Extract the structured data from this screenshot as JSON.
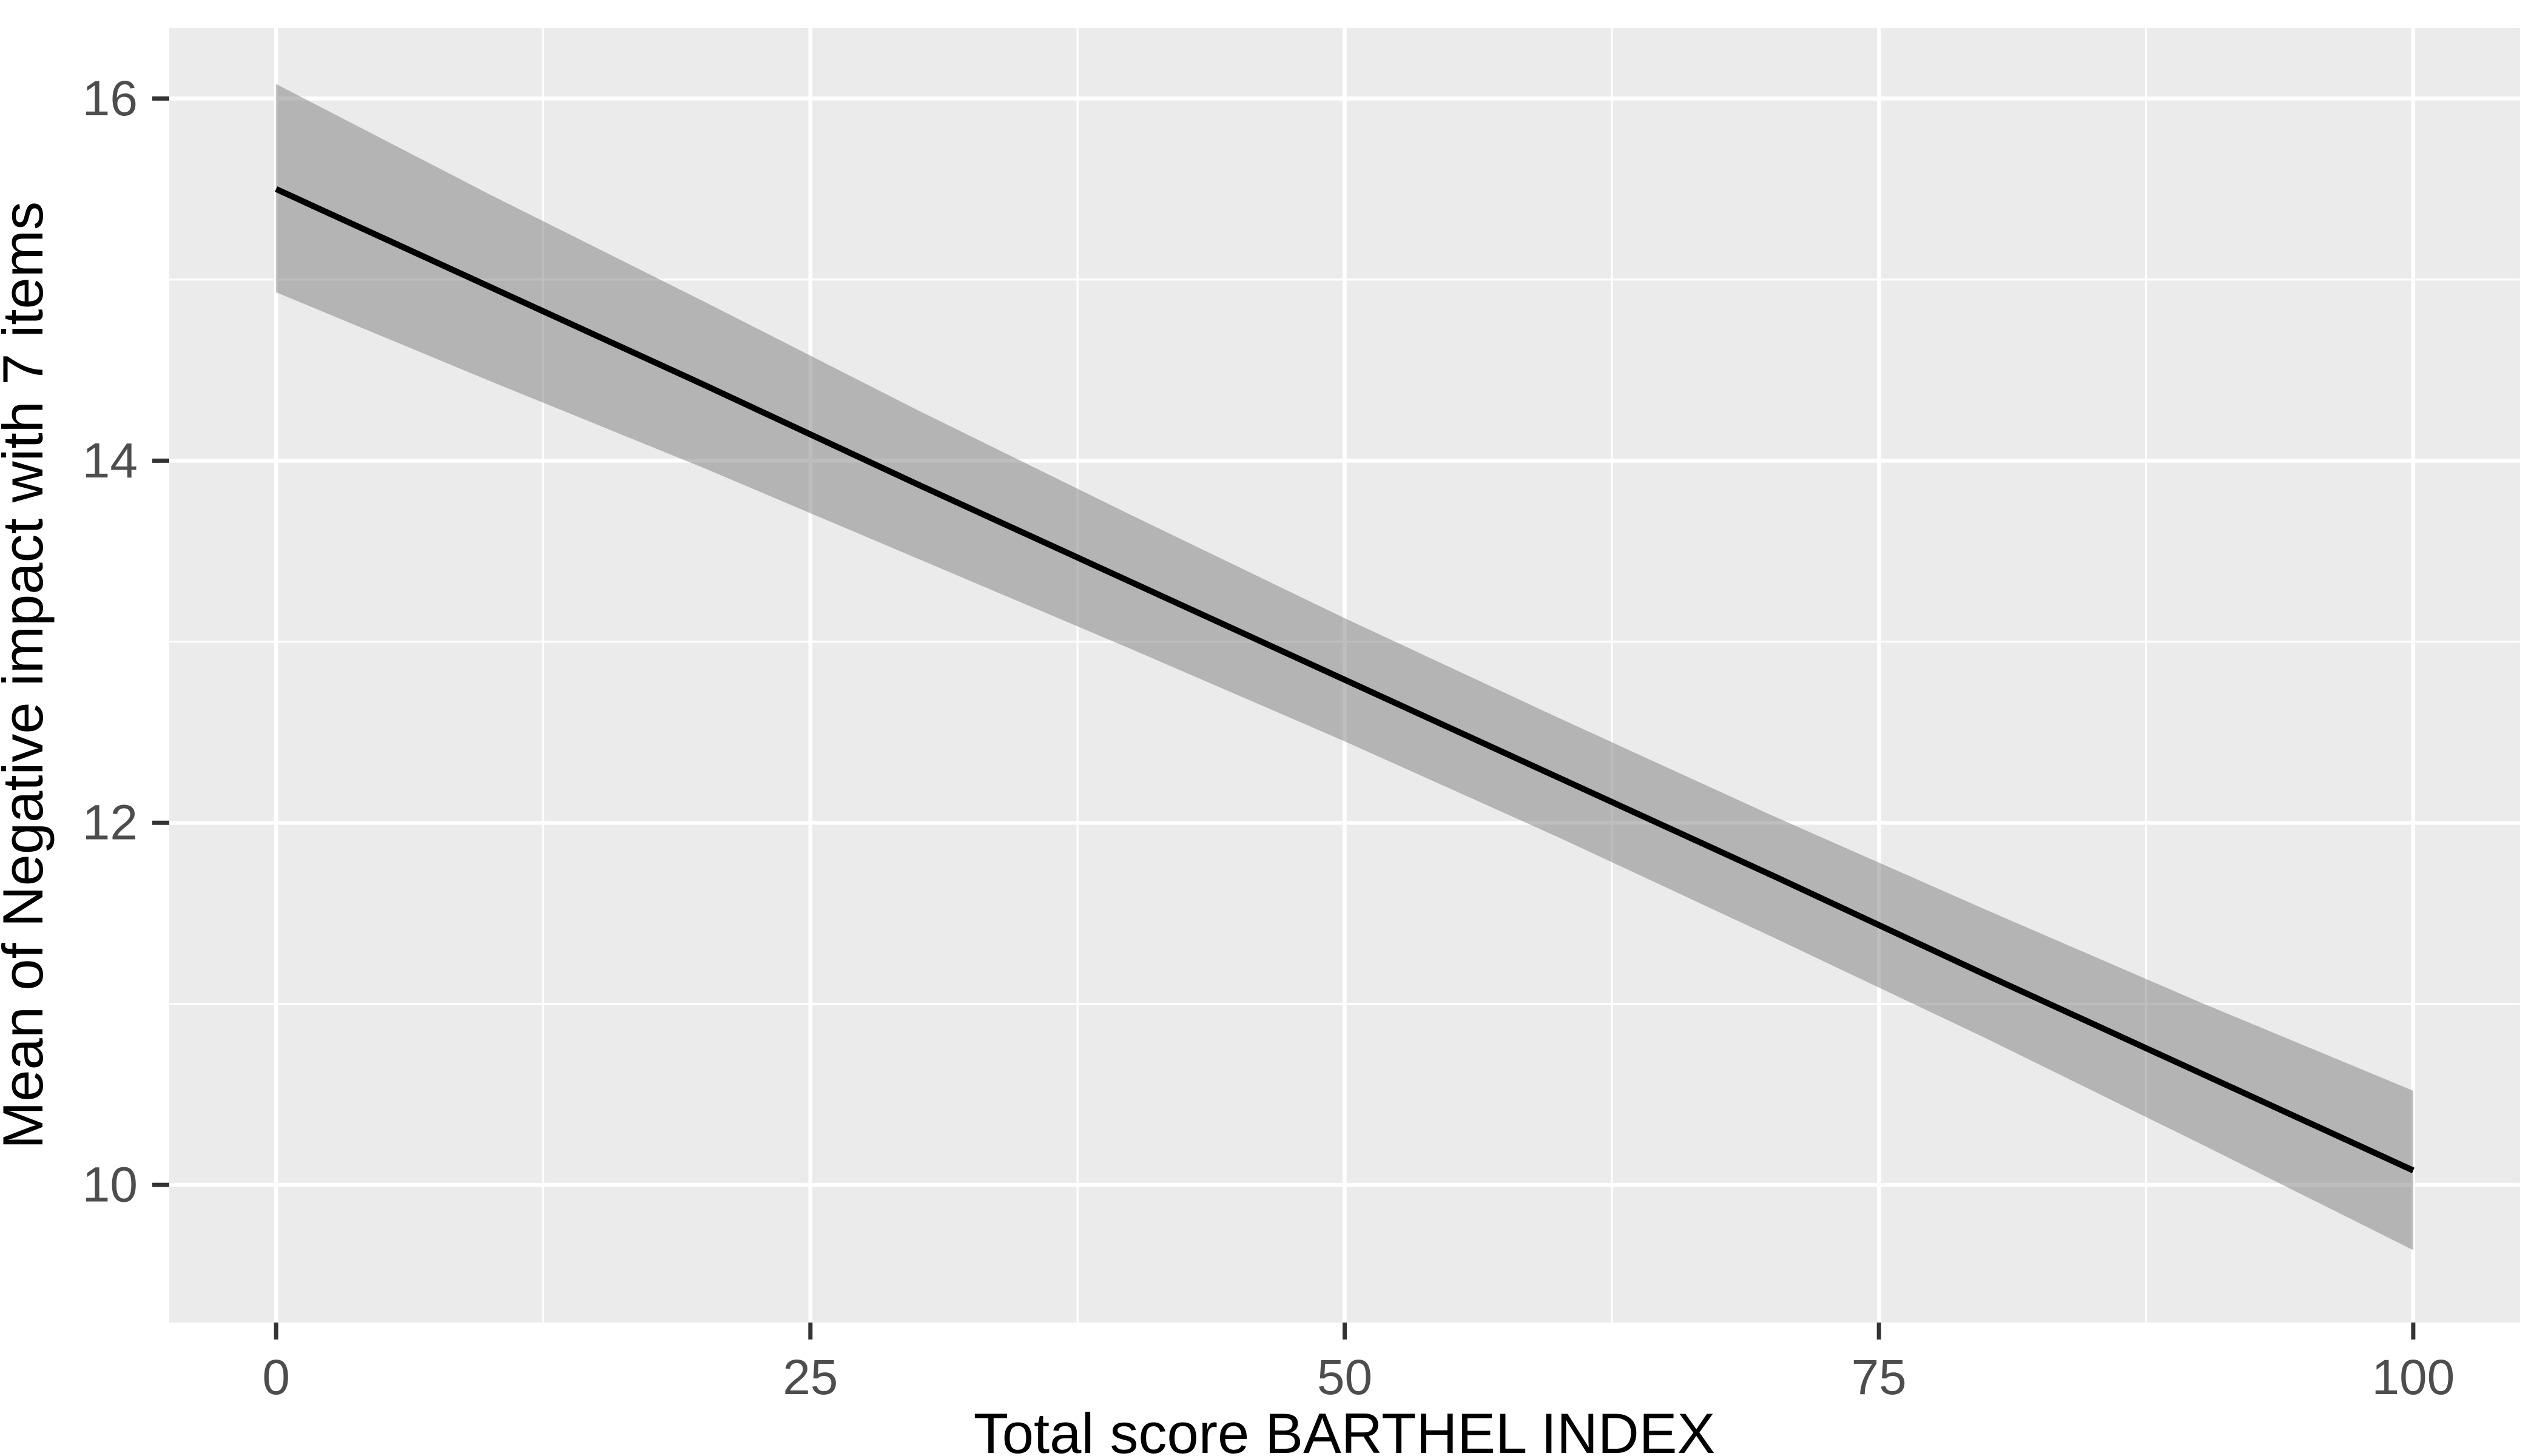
{
  "figure": {
    "background": "#FFFFFF",
    "panel_background": "#EBEBEB",
    "grid_color": "#FFFFFF",
    "axis_text_color": "#4D4D4D",
    "axis_title_color": "#000000",
    "tick_mark_color": "#333333",
    "line_color": "#000000",
    "ribbon_fill": "rgba(125,125,125,0.5)"
  },
  "chart_data": {
    "type": "line",
    "title": "",
    "xlabel": "Total score BARTHEL INDEX",
    "ylabel": "Mean of Negative impact with 7 items",
    "legend_position": "none",
    "grid": true,
    "xlim": [
      -5,
      105
    ],
    "ylim": [
      9.24,
      16.39
    ],
    "x_major_ticks": [
      0,
      25,
      50,
      75,
      100
    ],
    "x_tick_labels": [
      "0",
      "25",
      "50",
      "75",
      "100"
    ],
    "x_minor_ticks": [
      12.5,
      37.5,
      62.5,
      87.5
    ],
    "y_major_ticks": [
      10,
      12,
      14,
      16
    ],
    "y_tick_labels": [
      "10",
      "12",
      "14",
      "16"
    ],
    "y_minor_ticks": [
      11,
      13,
      15
    ],
    "x": [
      0,
      10,
      20,
      30,
      40,
      50,
      60,
      70,
      80,
      90,
      100
    ],
    "series": [
      {
        "name": "fitted_line",
        "values": [
          15.5,
          14.96,
          14.42,
          13.87,
          13.33,
          12.79,
          12.25,
          11.71,
          11.16,
          10.62,
          10.08
        ]
      },
      {
        "name": "ci_upper",
        "values": [
          16.08,
          15.47,
          14.88,
          14.28,
          13.7,
          13.13,
          12.58,
          12.04,
          11.52,
          11.01,
          10.52
        ]
      },
      {
        "name": "ci_lower",
        "values": [
          14.93,
          14.44,
          13.96,
          13.46,
          12.96,
          12.45,
          11.92,
          11.37,
          10.81,
          10.23,
          9.64
        ]
      }
    ]
  }
}
